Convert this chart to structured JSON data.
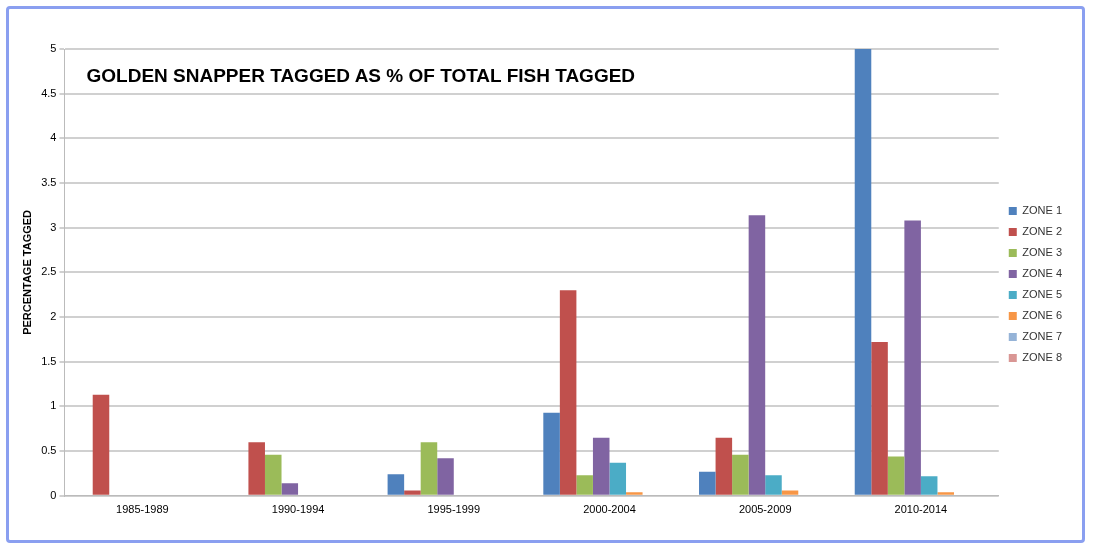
{
  "chart_data": {
    "type": "bar",
    "title": "GOLDEN SNAPPER TAGGED AS % OF TOTAL FISH TAGGED",
    "ylabel": "PERCENTAGE TAGGED",
    "categories": [
      "1985-1989",
      "1990-1994",
      "1995-1999",
      "2000-2004",
      "2005-2009",
      "2010-2014"
    ],
    "series": [
      {
        "name": "ZONE 1",
        "color": "#4f81bd",
        "values": [
          0,
          0,
          0.24,
          0.93,
          0.27,
          5
        ]
      },
      {
        "name": "ZONE 2",
        "color": "#c0504d",
        "values": [
          1.13,
          0.6,
          0.06,
          2.3,
          0.65,
          1.72
        ]
      },
      {
        "name": "ZONE 3",
        "color": "#9bbb59",
        "values": [
          0,
          0.46,
          0.6,
          0.23,
          0.46,
          0.44
        ]
      },
      {
        "name": "ZONE 4",
        "color": "#8064a2",
        "values": [
          0,
          0.14,
          0.42,
          0.65,
          3.14,
          3.08
        ]
      },
      {
        "name": "ZONE 5",
        "color": "#4bacc6",
        "values": [
          0,
          0,
          0,
          0.37,
          0.23,
          0.22
        ]
      },
      {
        "name": "ZONE 6",
        "color": "#f79646",
        "values": [
          0,
          0,
          0,
          0.04,
          0.06,
          0.04
        ]
      },
      {
        "name": "ZONE 7",
        "color": "#95b3d7",
        "values": [
          0,
          0,
          0,
          0,
          0,
          0
        ]
      },
      {
        "name": "ZONE 8",
        "color": "#d99694",
        "values": [
          0,
          0,
          0,
          0,
          0,
          0
        ]
      }
    ],
    "ylim": [
      0,
      5
    ],
    "yticks": [
      0,
      0.5,
      1,
      1.5,
      2,
      2.5,
      3,
      3.5,
      4,
      4.5,
      5
    ],
    "grid": "y",
    "legend": "right"
  }
}
